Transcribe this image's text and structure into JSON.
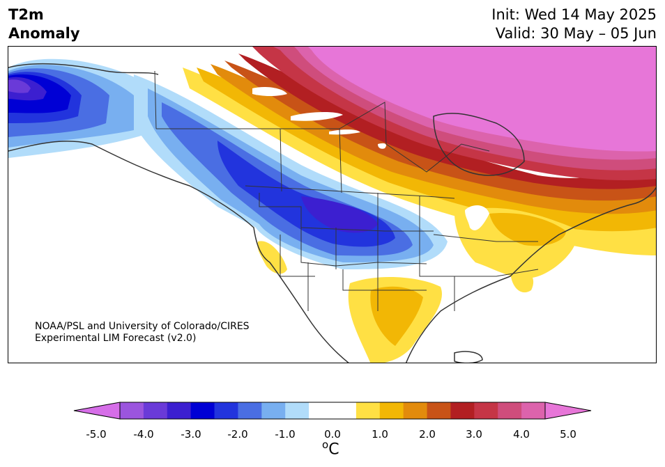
{
  "title": {
    "line1": "T2m",
    "line2": "Anomaly"
  },
  "dates": {
    "init": "Init: Wed 14 May 2025",
    "valid": "Valid: 30 May – 05 Jun"
  },
  "credit": {
    "line1": "NOAA/PSL and University of Colorado/CIRES",
    "line2": "Experimental LIM Forecast (v2.0)"
  },
  "colorbar": {
    "ticks": [
      "-5.0",
      "-4.0",
      "-3.0",
      "-2.0",
      "-1.0",
      "0.0",
      "1.0",
      "2.0",
      "3.0",
      "4.0",
      "5.0"
    ],
    "unit_sup": "o",
    "unit_base": "C",
    "colors": [
      "#d66ee8",
      "#9b55de",
      "#6a3ad8",
      "#3c1fd0",
      "#0000d5",
      "#2234dd",
      "#4a6ee3",
      "#78aff0",
      "#b1dcfa",
      "#ffffff",
      "#ffffff",
      "#ffe044",
      "#f2b705",
      "#e28b0c",
      "#c85317",
      "#b21f22",
      "#c53546",
      "#cf4d7c",
      "#dc63ac",
      "#e776d8"
    ]
  },
  "colors": {
    "cold_strong": "#0000d5",
    "warm_strong": "#e776d8",
    "land_outline": "#333333"
  }
}
